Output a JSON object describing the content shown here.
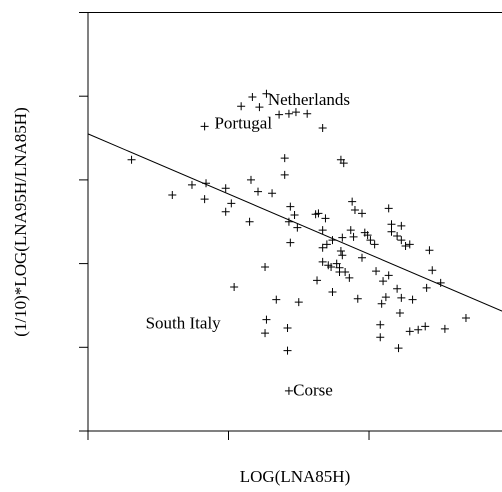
{
  "chart_data": {
    "type": "scatter",
    "x_label": "LOG(LNA85H)",
    "y_label": "(1/10)*LOG(LNA95H/LNA85H)",
    "xlim": [
      0,
      2.95
    ],
    "ylim": [
      0,
      5
    ],
    "xticks": [
      0,
      1,
      2
    ],
    "yticks": [
      0,
      1,
      2,
      3,
      4,
      5
    ],
    "color": "#000000",
    "x": [
      0.31,
      0.6,
      0.74,
      0.84,
      0.83,
      0.98,
      1.02,
      0.98,
      1.15,
      1.16,
      1.21,
      1.31,
      1.4,
      1.4,
      1.44,
      1.47,
      1.43,
      1.49,
      1.44,
      1.62,
      1.64,
      1.69,
      1.67,
      1.67,
      1.67,
      1.7,
      1.74,
      1.81,
      1.8,
      1.81,
      1.79,
      1.79,
      1.83,
      1.73,
      1.71,
      1.77,
      1.8,
      1.82,
      1.88,
      1.9,
      1.87,
      1.89,
      1.97,
      1.99,
      2.01,
      2.04,
      1.95,
      2.14,
      2.16,
      2.2,
      2.16,
      2.23,
      2.23,
      2.26,
      2.29,
      2.05,
      2.1,
      2.12,
      2.09,
      2.2,
      2.23,
      2.22,
      2.21,
      2.08,
      2.08,
      2.14,
      1.86,
      1.92,
      1.74,
      1.63,
      1.95,
      2.43,
      2.45,
      2.51,
      2.41,
      2.31,
      2.35,
      2.29,
      2.4,
      2.54,
      2.69,
      1.34,
      1.27,
      1.26,
      1.42,
      1.5,
      1.42,
      1.04,
      1.26,
      1.43,
      1.09,
      1.17,
      1.27,
      1.22,
      1.36,
      1.43,
      1.48,
      1.56,
      1.67,
      0.83
    ],
    "y": [
      3.24,
      2.82,
      2.94,
      2.96,
      2.77,
      2.9,
      2.72,
      2.62,
      2.5,
      3.0,
      2.86,
      2.84,
      3.26,
      3.06,
      2.68,
      2.58,
      2.5,
      2.43,
      2.25,
      2.59,
      2.6,
      2.54,
      2.4,
      2.19,
      2.02,
      2.23,
      2.28,
      2.31,
      2.15,
      2.1,
      1.95,
      1.9,
      1.9,
      1.96,
      1.98,
      2.0,
      3.24,
      3.2,
      2.74,
      2.64,
      2.4,
      2.32,
      2.37,
      2.34,
      2.28,
      2.23,
      2.6,
      2.66,
      2.47,
      2.33,
      2.38,
      2.45,
      2.28,
      2.21,
      2.23,
      1.91,
      1.79,
      1.6,
      1.52,
      1.7,
      1.59,
      1.41,
      0.99,
      1.27,
      1.12,
      1.86,
      1.83,
      1.58,
      1.66,
      1.8,
      2.07,
      2.16,
      1.92,
      1.77,
      1.71,
      1.57,
      1.21,
      1.19,
      1.25,
      1.22,
      1.35,
      1.57,
      1.33,
      1.17,
      1.23,
      1.54,
      0.96,
      1.72,
      1.96,
      0.48,
      3.88,
      3.99,
      4.03,
      3.87,
      3.78,
      3.79,
      3.81,
      3.79,
      3.62,
      3.64
    ],
    "fit_line": {
      "x": [
        0,
        2.95
      ],
      "y": [
        3.55,
        1.43
      ]
    },
    "annotations": [
      {
        "text": "Netherlands",
        "x": 1.28,
        "y": 3.94
      },
      {
        "text": "Portugal",
        "x": 0.9,
        "y": 3.66
      },
      {
        "text": "South Italy",
        "x": 0.41,
        "y": 1.27
      },
      {
        "text": "Corse",
        "x": 1.46,
        "y": 0.47
      }
    ]
  }
}
